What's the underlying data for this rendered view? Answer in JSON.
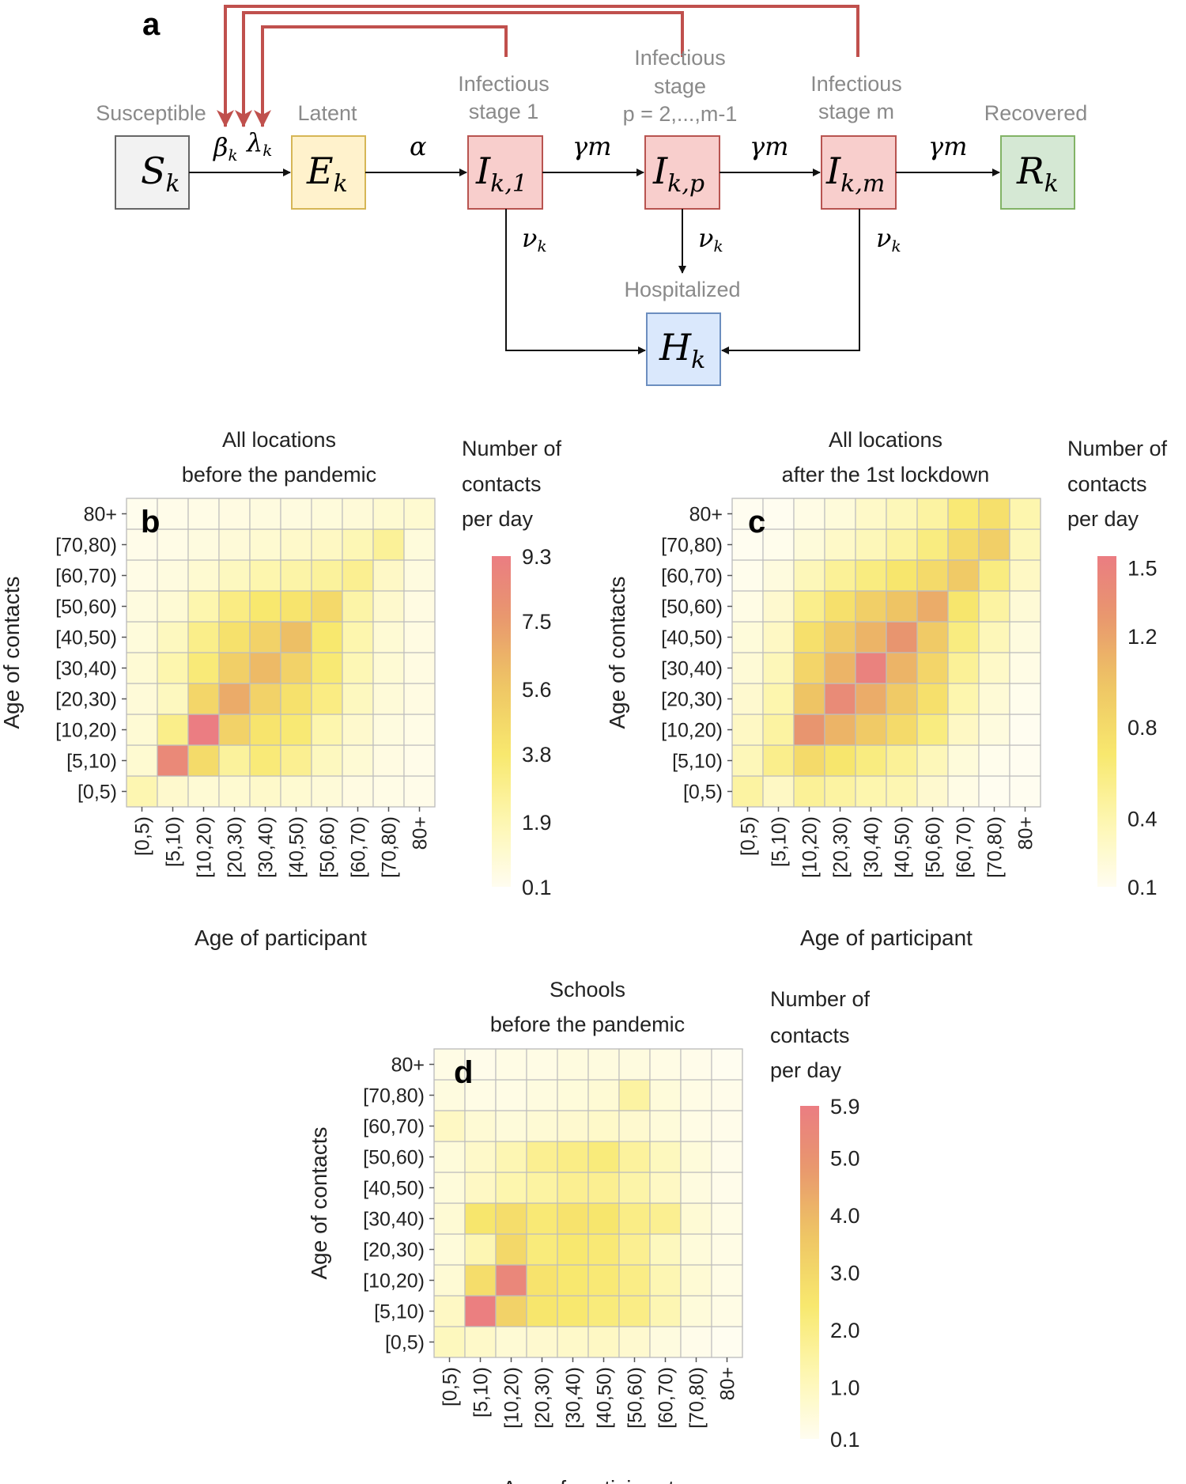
{
  "diagram": {
    "panel_label": "a",
    "states": {
      "susceptible": {
        "caption": "Susceptible",
        "symbol": "S",
        "sub": "k"
      },
      "latent": {
        "caption": "Latent",
        "symbol": "E",
        "sub": "k"
      },
      "inf1": {
        "caption_lines": [
          "Infectious",
          "stage 1"
        ],
        "symbol": "I",
        "sub": "k,1"
      },
      "infp": {
        "caption_lines": [
          "Infectious",
          "stage",
          "p = 2,...,m-1"
        ],
        "symbol": "I",
        "sub": "k,p"
      },
      "infm": {
        "caption_lines": [
          "Infectious",
          "stage m"
        ],
        "symbol": "I",
        "sub": "k,m"
      },
      "recovered": {
        "caption": "Recovered",
        "symbol": "R",
        "sub": "k"
      },
      "hospitalized": {
        "caption": "Hospitalized",
        "symbol": "H",
        "sub": "k"
      }
    },
    "rates": {
      "beta": "β",
      "beta_sub": "k",
      "lambda": "λ",
      "lambda_sub": "k",
      "alpha": "α",
      "gamma_m": "γm",
      "nu": "ν",
      "nu_sub": "k"
    },
    "colors": {
      "susceptible": "#f2f2f2",
      "latent": "#fff2cc",
      "infectious": "#f8cecc",
      "recovered": "#d5e8d4",
      "hospitalized": "#dae8fc",
      "feedback": "#c0504d"
    }
  },
  "chart_data": [
    {
      "panel": "b",
      "type": "heatmap",
      "title": [
        "All locations",
        "before the pandemic"
      ],
      "xlabel": "Age of participant",
      "ylabel": "Age of contacts",
      "categories": [
        "[0,5)",
        "[5,10)",
        "[10,20)",
        "[20,30)",
        "[30,40)",
        "[40,50)",
        "[50,60)",
        "[60,70)",
        "[70,80)",
        "80+"
      ],
      "colorbar": {
        "title": [
          "Number of",
          "contacts",
          "per day"
        ],
        "ticks": [
          9.3,
          7.5,
          5.6,
          3.8,
          1.9,
          0.1
        ],
        "tick_labels": [
          "9.3",
          "7.5",
          "5.6",
          "3.8",
          "1.9",
          "0.1"
        ],
        "min": 0.1,
        "max": 9.3
      },
      "values": [
        [
          1.9,
          1.1,
          0.9,
          1.0,
          1.2,
          1.0,
          0.8,
          0.5,
          0.4,
          0.3
        ],
        [
          1.0,
          8.5,
          4.5,
          2.5,
          3.5,
          2.8,
          1.5,
          0.9,
          0.5,
          0.3
        ],
        [
          0.9,
          3.0,
          9.3,
          5.0,
          4.0,
          3.6,
          2.0,
          1.1,
          0.6,
          0.4
        ],
        [
          0.8,
          1.5,
          4.8,
          6.8,
          5.0,
          4.2,
          3.2,
          1.5,
          0.8,
          0.5
        ],
        [
          0.9,
          2.0,
          3.5,
          5.2,
          6.2,
          5.0,
          3.6,
          1.8,
          0.9,
          0.5
        ],
        [
          0.7,
          1.5,
          3.0,
          4.2,
          5.0,
          6.0,
          3.8,
          2.0,
          0.9,
          0.5
        ],
        [
          0.6,
          0.9,
          2.0,
          3.2,
          3.8,
          4.0,
          4.6,
          2.2,
          1.1,
          0.5
        ],
        [
          0.4,
          0.6,
          1.0,
          1.5,
          2.0,
          2.2,
          2.5,
          2.8,
          1.3,
          0.6
        ],
        [
          0.3,
          0.4,
          0.6,
          0.8,
          1.0,
          1.2,
          1.4,
          1.8,
          2.6,
          0.7
        ],
        [
          0.2,
          0.3,
          0.4,
          0.5,
          0.6,
          0.6,
          0.7,
          0.8,
          1.0,
          1.0
        ]
      ]
    },
    {
      "panel": "c",
      "type": "heatmap",
      "title": [
        "All locations",
        "after the 1st lockdown"
      ],
      "xlabel": "Age of participant",
      "ylabel": "Age of contacts",
      "categories": [
        "[0,5)",
        "[5,10)",
        "[10,20)",
        "[20,30)",
        "[30,40)",
        "[40,50)",
        "[50,60)",
        "[60,70)",
        "[70,80)",
        "80+"
      ],
      "colorbar": {
        "title": [
          "Number of",
          "contacts",
          "per day"
        ],
        "ticks": [
          1.5,
          1.2,
          0.8,
          0.4,
          0.1
        ],
        "tick_labels": [
          "1.5",
          "1.2",
          "0.8",
          "0.4",
          "0.1"
        ],
        "min": 0.1,
        "max": 1.55
      },
      "values": [
        [
          0.45,
          0.3,
          0.5,
          0.45,
          0.4,
          0.38,
          0.25,
          0.15,
          0.1,
          0.08
        ],
        [
          0.35,
          0.55,
          0.8,
          0.7,
          0.6,
          0.5,
          0.35,
          0.2,
          0.12,
          0.08
        ],
        [
          0.3,
          0.45,
          1.3,
          1.1,
          0.95,
          0.8,
          0.6,
          0.3,
          0.18,
          0.1
        ],
        [
          0.25,
          0.4,
          1.0,
          1.4,
          1.15,
          0.95,
          0.75,
          0.4,
          0.22,
          0.12
        ],
        [
          0.22,
          0.35,
          0.85,
          1.1,
          1.5,
          1.1,
          0.85,
          0.5,
          0.28,
          0.15
        ],
        [
          0.2,
          0.3,
          0.75,
          0.95,
          1.1,
          1.3,
          0.95,
          0.6,
          0.35,
          0.18
        ],
        [
          0.15,
          0.25,
          0.55,
          0.75,
          0.9,
          1.0,
          1.15,
          0.7,
          0.45,
          0.22
        ],
        [
          0.12,
          0.18,
          0.35,
          0.5,
          0.6,
          0.7,
          0.8,
          0.95,
          0.6,
          0.3
        ],
        [
          0.08,
          0.12,
          0.2,
          0.28,
          0.35,
          0.45,
          0.6,
          0.8,
          0.9,
          0.35
        ],
        [
          0.06,
          0.1,
          0.15,
          0.2,
          0.28,
          0.35,
          0.45,
          0.65,
          0.75,
          0.4
        ]
      ]
    },
    {
      "panel": "d",
      "type": "heatmap",
      "title": [
        "Schools",
        "before the pandemic"
      ],
      "xlabel": "Age of participant",
      "ylabel": "Age of contacts",
      "categories": [
        "[0,5)",
        "[5,10)",
        "[10,20)",
        "[20,30)",
        "[30,40)",
        "[40,50)",
        "[50,60)",
        "[60,70)",
        "[70,80)",
        "80+"
      ],
      "colorbar": {
        "title": [
          "Number of",
          "contacts",
          "per day"
        ],
        "ticks": [
          5.9,
          5.0,
          4.0,
          3.0,
          2.0,
          1.0,
          0.1
        ],
        "tick_labels": [
          "5.9",
          "5.0",
          "4.0",
          "3.0",
          "2.0",
          "1.0",
          "0.1"
        ],
        "min": 0.1,
        "max": 5.9
      },
      "values": [
        [
          1.0,
          0.8,
          0.6,
          0.7,
          0.8,
          0.9,
          0.7,
          0.4,
          0.2,
          0.1
        ],
        [
          0.9,
          5.8,
          3.2,
          2.5,
          2.4,
          2.2,
          2.0,
          1.2,
          0.5,
          0.3
        ],
        [
          0.6,
          2.8,
          5.5,
          2.6,
          2.4,
          2.3,
          2.0,
          1.2,
          0.6,
          0.3
        ],
        [
          0.5,
          1.2,
          3.0,
          2.2,
          2.4,
          2.3,
          1.8,
          1.0,
          0.5,
          0.3
        ],
        [
          0.6,
          2.5,
          2.8,
          2.3,
          2.6,
          2.5,
          2.0,
          1.8,
          0.6,
          0.3
        ],
        [
          0.5,
          0.9,
          1.3,
          1.5,
          1.8,
          1.8,
          1.4,
          0.9,
          0.4,
          0.2
        ],
        [
          0.5,
          0.8,
          1.2,
          1.8,
          2.0,
          2.2,
          1.6,
          1.0,
          0.5,
          0.2
        ],
        [
          0.9,
          0.6,
          0.5,
          0.6,
          0.7,
          0.8,
          0.7,
          0.5,
          0.3,
          0.2
        ],
        [
          0.4,
          0.3,
          0.3,
          0.4,
          0.5,
          0.6,
          1.5,
          0.5,
          0.3,
          0.2
        ],
        [
          0.3,
          0.2,
          0.3,
          0.3,
          0.4,
          0.4,
          0.4,
          0.3,
          0.2,
          0.1
        ]
      ]
    }
  ]
}
